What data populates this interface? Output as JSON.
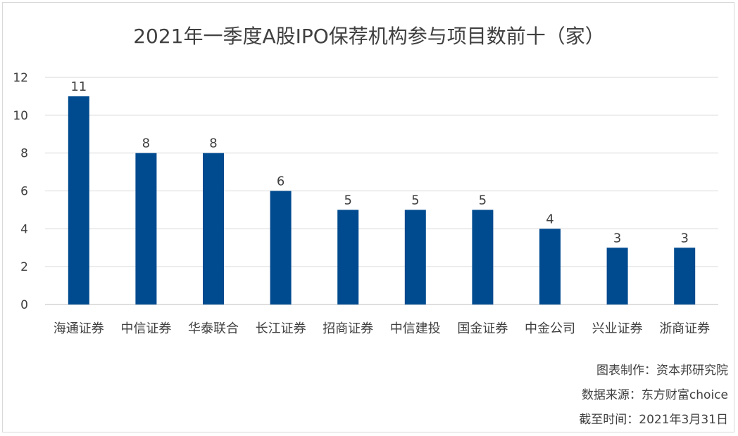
{
  "chart_data": {
    "type": "bar",
    "title": "2021年一季度A股IPO保荐机构参与项目数前十（家）",
    "categories": [
      "海通证券",
      "中信证券",
      "华泰联合",
      "长江证券",
      "招商证券",
      "中信建投",
      "国金证券",
      "中金公司",
      "兴业证券",
      "浙商证券"
    ],
    "values": [
      11,
      8,
      8,
      6,
      5,
      5,
      5,
      4,
      3,
      3
    ],
    "ylim": [
      0,
      12
    ],
    "yticks": [
      0,
      2,
      4,
      6,
      8,
      10,
      12
    ],
    "xlabel": "",
    "ylabel": "",
    "grid": true,
    "data_labels": true,
    "bar_color": "#004a8f",
    "grid_color": "#d9d9d9"
  },
  "notes": {
    "maker": "图表制作：资本邦研究院",
    "source": "数据来源：东方财富choice",
    "cutoff": "截至时间：2021年3月31日"
  }
}
